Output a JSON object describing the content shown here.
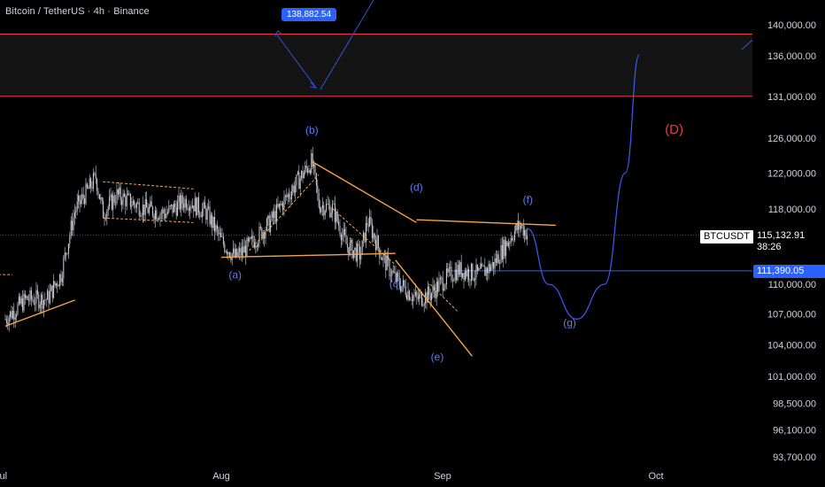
{
  "title": "Bitcoin / TetherUS · 4h · Binance",
  "symbol_tag": "BTCUSDT",
  "last_price": "115,132.91",
  "countdown": "38:26",
  "level_price": "111,390.05",
  "callout_price": "138,882.54",
  "colors": {
    "background": "#000000",
    "candles": "#d1d4dc",
    "wave_labels": "#5b7cf7",
    "projection": "#3d5afe",
    "trendlines": "#f7a44a",
    "resistance_zone": "#f23645",
    "target_label": "#f23645"
  },
  "chart_data": {
    "type": "candlestick",
    "y_axis": {
      "scale": "log",
      "ticks": [
        "140,000.00",
        "136,000.00",
        "131,000.00",
        "126,000.00",
        "122,000.00",
        "118,000.00",
        "110,000.00",
        "107,000.00",
        "104,000.00",
        "101,000.00",
        "98,500.00",
        "96,100.00",
        "93,700.00"
      ]
    },
    "x_axis": {
      "ticks": [
        "Jul",
        "Aug",
        "Sep",
        "Oct"
      ]
    },
    "price_path": [
      [
        "2025-07-01",
        106500
      ],
      [
        "2025-07-04",
        108500
      ],
      [
        "2025-07-07",
        108500
      ],
      [
        "2025-07-09",
        111000
      ],
      [
        "2025-07-11",
        117800
      ],
      [
        "2025-07-14",
        121500
      ],
      [
        "2025-07-15",
        117500
      ],
      [
        "2025-07-17",
        119500
      ],
      [
        "2025-07-21",
        118000
      ],
      [
        "2025-07-24",
        117500
      ],
      [
        "2025-07-27",
        119000
      ],
      [
        "2025-07-30",
        117500
      ],
      [
        "2025-08-01",
        114500
      ],
      [
        "2025-08-03",
        112800
      ],
      [
        "2025-08-05",
        114000
      ],
      [
        "2025-08-08",
        116500
      ],
      [
        "2025-08-11",
        120000
      ],
      [
        "2025-08-14",
        123300
      ],
      [
        "2025-08-15",
        118500
      ],
      [
        "2025-08-17",
        118000
      ],
      [
        "2025-08-19",
        114000
      ],
      [
        "2025-08-21",
        113000
      ],
      [
        "2025-08-22",
        116800
      ],
      [
        "2025-08-24",
        113000
      ],
      [
        "2025-08-26",
        110500
      ],
      [
        "2025-08-29",
        108500
      ],
      [
        "2025-08-31",
        109000
      ],
      [
        "2025-09-02",
        110500
      ],
      [
        "2025-09-04",
        111500
      ],
      [
        "2025-09-07",
        111000
      ],
      [
        "2025-09-09",
        112000
      ],
      [
        "2025-09-12",
        115500
      ],
      [
        "2025-09-13",
        116200
      ],
      [
        "2025-09-14",
        115133
      ]
    ],
    "resistance_zone": [
      131000,
      138800
    ],
    "horizontal_level": 111390.05,
    "wave_labels": [
      {
        "label": "(a)",
        "date": "2025-08-03",
        "price": 110600
      },
      {
        "label": "(b)",
        "date": "2025-08-14",
        "price": 126500
      },
      {
        "label": "(c)",
        "date": "2025-08-26",
        "price": 109700
      },
      {
        "label": "(d)",
        "date": "2025-08-29",
        "price": 120000
      },
      {
        "label": "(e)",
        "date": "2025-09-01",
        "price": 102500
      },
      {
        "label": "(f)",
        "date": "2025-09-14",
        "price": 118600
      },
      {
        "label": "(g)",
        "date": "2025-09-20",
        "price": 105800
      },
      {
        "label": "(D)",
        "date": "2025-10-05",
        "price": 126500
      }
    ],
    "projection": [
      [
        "2025-09-14",
        115800
      ],
      [
        "2025-09-17",
        110000
      ],
      [
        "2025-09-21",
        106500
      ],
      [
        "2025-09-25",
        110000
      ],
      [
        "2025-09-28",
        122000
      ],
      [
        "2025-09-30",
        136200
      ]
    ]
  }
}
